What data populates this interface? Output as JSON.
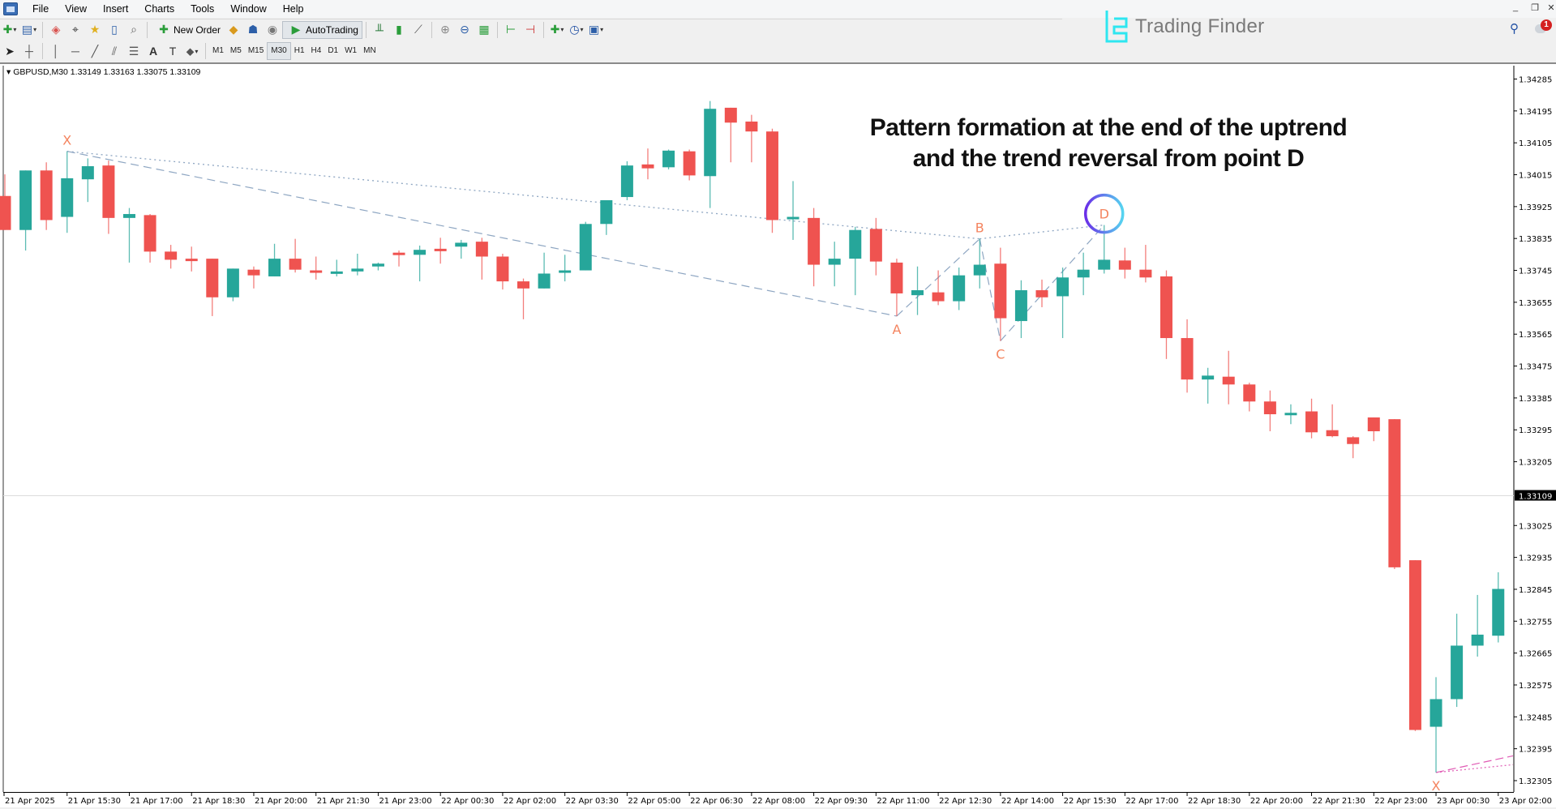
{
  "menu": [
    "File",
    "View",
    "Insert",
    "Charts",
    "Tools",
    "Window",
    "Help"
  ],
  "toolbar": {
    "new_order": "New Order",
    "autotrading": "AutoTrading"
  },
  "timeframes": [
    "M1",
    "M5",
    "M15",
    "M30",
    "H1",
    "H4",
    "D1",
    "W1",
    "MN"
  ],
  "active_timeframe": "M30",
  "logo": {
    "text": "Trading Finder",
    "color": "#2ee6f0"
  },
  "notifications": {
    "count": "1"
  },
  "chart": {
    "info": "GBPUSD,M30  1.33149 1.33163 1.33075 1.33109",
    "annotation": [
      "Pattern formation at the end of the uptrend",
      "and the trend reversal from point D"
    ],
    "colors": {
      "bull": "#26a69a",
      "bear": "#ef5350",
      "pattern_label": "#f4845f",
      "pattern_line": "#8ea6c2",
      "next_pattern": "#e05ab4",
      "highlight_circle": [
        "#6a2ee8",
        "#56d4f0"
      ]
    }
  },
  "chart_data": {
    "type": "candlestick",
    "symbol": "GBPUSD",
    "timeframe": "M30",
    "bid": 1.33109,
    "bid_label": "1.33109",
    "ylim": [
      1.32265,
      1.3434
    ],
    "price_ticks": [
      "1.34285",
      "1.34195",
      "1.34105",
      "1.34015",
      "1.33925",
      "1.33835",
      "1.33745",
      "1.33655",
      "1.33565",
      "1.33475",
      "1.33385",
      "1.33295",
      "1.33205",
      "1.33025",
      "1.32935",
      "1.32845",
      "1.32755",
      "1.32665",
      "1.32575",
      "1.32485",
      "1.32395",
      "1.32305"
    ],
    "time_labels": [
      "21 Apr 2025",
      "21 Apr 15:30",
      "21 Apr 17:00",
      "21 Apr 18:30",
      "21 Apr 20:00",
      "21 Apr 21:30",
      "21 Apr 23:00",
      "22 Apr 00:30",
      "22 Apr 02:00",
      "22 Apr 03:30",
      "22 Apr 05:00",
      "22 Apr 06:30",
      "22 Apr 08:00",
      "22 Apr 09:30",
      "22 Apr 11:00",
      "22 Apr 12:30",
      "22 Apr 14:00",
      "22 Apr 15:30",
      "22 Apr 17:00",
      "22 Apr 18:30",
      "22 Apr 20:00",
      "22 Apr 21:30",
      "22 Apr 23:00",
      "23 Apr 00:30",
      "23 Apr 02:00"
    ],
    "candles": [
      [
        1.33955,
        1.34016,
        1.33859,
        1.33859
      ],
      [
        1.33859,
        1.34027,
        1.33801,
        1.34027
      ],
      [
        1.34027,
        1.3405,
        1.33859,
        1.33887
      ],
      [
        1.33896,
        1.34081,
        1.33851,
        1.34005
      ],
      [
        1.34002,
        1.34061,
        1.33938,
        1.34039
      ],
      [
        1.34041,
        1.34055,
        1.33848,
        1.33893
      ],
      [
        1.33893,
        1.33921,
        1.33767,
        1.33904
      ],
      [
        1.33901,
        1.33904,
        1.33767,
        1.33798
      ],
      [
        1.33798,
        1.33817,
        1.3375,
        1.33775
      ],
      [
        1.33778,
        1.33812,
        1.33742,
        1.33775
      ],
      [
        1.33778,
        1.33778,
        1.33616,
        1.33669
      ],
      [
        1.33669,
        1.3375,
        1.33658,
        1.3375
      ],
      [
        1.33747,
        1.33756,
        1.33694,
        1.33731
      ],
      [
        1.33728,
        1.3382,
        1.33728,
        1.33778
      ],
      [
        1.33778,
        1.33834,
        1.33739,
        1.33747
      ],
      [
        1.33745,
        1.33784,
        1.33719,
        1.33742
      ],
      [
        1.33736,
        1.33775,
        1.33728,
        1.33742
      ],
      [
        1.33742,
        1.33792,
        1.33731,
        1.3375
      ],
      [
        1.33756,
        1.33767,
        1.33745,
        1.33764
      ],
      [
        1.33795,
        1.33801,
        1.33756,
        1.33792
      ],
      [
        1.33789,
        1.33815,
        1.33714,
        1.33803
      ],
      [
        1.33806,
        1.33837,
        1.33764,
        1.33803
      ],
      [
        1.33812,
        1.33831,
        1.33778,
        1.33823
      ],
      [
        1.33826,
        1.33837,
        1.33719,
        1.33784
      ],
      [
        1.33784,
        1.33792,
        1.33691,
        1.33714
      ],
      [
        1.33714,
        1.33722,
        1.33607,
        1.33694
      ],
      [
        1.33694,
        1.33795,
        1.33694,
        1.33736
      ],
      [
        1.33739,
        1.33789,
        1.33714,
        1.33745
      ],
      [
        1.33745,
        1.33882,
        1.33745,
        1.33876
      ],
      [
        1.33876,
        1.33943,
        1.33845,
        1.33943
      ],
      [
        1.33952,
        1.34053,
        1.33943,
        1.34041
      ],
      [
        1.34044,
        1.34089,
        1.34002,
        1.34033
      ],
      [
        1.34036,
        1.34086,
        1.3403,
        1.34083
      ],
      [
        1.34081,
        1.34086,
        1.33999,
        1.34013
      ],
      [
        1.34011,
        1.34223,
        1.33921,
        1.34201
      ],
      [
        1.34204,
        1.34204,
        1.3405,
        1.34162
      ],
      [
        1.34165,
        1.34184,
        1.3405,
        1.34137
      ],
      [
        1.34137,
        1.34145,
        1.33851,
        1.33887
      ],
      [
        1.33893,
        1.33997,
        1.33831,
        1.33896
      ],
      [
        1.33893,
        1.33921,
        1.337,
        1.33761
      ],
      [
        1.33761,
        1.33826,
        1.337,
        1.33778
      ],
      [
        1.33778,
        1.33868,
        1.33675,
        1.33859
      ],
      [
        1.33862,
        1.33893,
        1.33731,
        1.3377
      ],
      [
        1.33767,
        1.33778,
        1.33616,
        1.3368
      ],
      [
        1.33675,
        1.33756,
        1.33619,
        1.33689
      ],
      [
        1.33683,
        1.33745,
        1.33647,
        1.33658
      ],
      [
        1.33658,
        1.33753,
        1.33633,
        1.33731
      ],
      [
        1.33731,
        1.33834,
        1.33694,
        1.33761
      ],
      [
        1.33764,
        1.33809,
        1.33546,
        1.3361
      ],
      [
        1.33602,
        1.33717,
        1.33554,
        1.33689
      ],
      [
        1.33689,
        1.33719,
        1.33641,
        1.33669
      ],
      [
        1.33672,
        1.33753,
        1.33554,
        1.33725
      ],
      [
        1.33725,
        1.33795,
        1.33675,
        1.33747
      ],
      [
        1.33747,
        1.33873,
        1.33736,
        1.33775
      ],
      [
        1.33773,
        1.33809,
        1.33722,
        1.33747
      ],
      [
        1.33747,
        1.33817,
        1.33711,
        1.33725
      ],
      [
        1.33728,
        1.33745,
        1.33495,
        1.33554
      ],
      [
        1.33554,
        1.33607,
        1.334,
        1.33437
      ],
      [
        1.33437,
        1.3347,
        1.33369,
        1.33448
      ],
      [
        1.33445,
        1.33518,
        1.33367,
        1.33423
      ],
      [
        1.33423,
        1.33428,
        1.33347,
        1.33375
      ],
      [
        1.33375,
        1.33406,
        1.33291,
        1.33339
      ],
      [
        1.33339,
        1.33367,
        1.33311,
        1.33343
      ],
      [
        1.33347,
        1.33383,
        1.33271,
        1.33288
      ],
      [
        1.33294,
        1.33367,
        1.33274,
        1.33277
      ],
      [
        1.33274,
        1.33277,
        1.33215,
        1.33255
      ],
      [
        1.3333,
        1.3333,
        1.33263,
        1.33291
      ],
      [
        1.33325,
        1.33325,
        1.32902,
        1.32907
      ],
      [
        1.32927,
        1.32927,
        1.32445,
        1.32448
      ],
      [
        1.32457,
        1.32597,
        1.32328,
        1.32535
      ],
      [
        1.32535,
        1.32776,
        1.32513,
        1.32686
      ],
      [
        1.32686,
        1.32829,
        1.32655,
        1.32717
      ],
      [
        1.32714,
        1.32893,
        1.32695,
        1.32846
      ]
    ],
    "pattern_points": [
      {
        "label": "X",
        "bar": 3,
        "price": 1.34081,
        "pos": "above"
      },
      {
        "label": "A",
        "bar": 43,
        "price": 1.33616,
        "pos": "below"
      },
      {
        "label": "B",
        "bar": 47,
        "price": 1.33834,
        "pos": "above"
      },
      {
        "label": "C",
        "bar": 48,
        "price": 1.33546,
        "pos": "below"
      },
      {
        "label": "D",
        "bar": 53,
        "price": 1.33873,
        "pos": "above"
      },
      {
        "label": "X",
        "bar": 69,
        "price": 1.32328,
        "pos": "below"
      }
    ]
  }
}
